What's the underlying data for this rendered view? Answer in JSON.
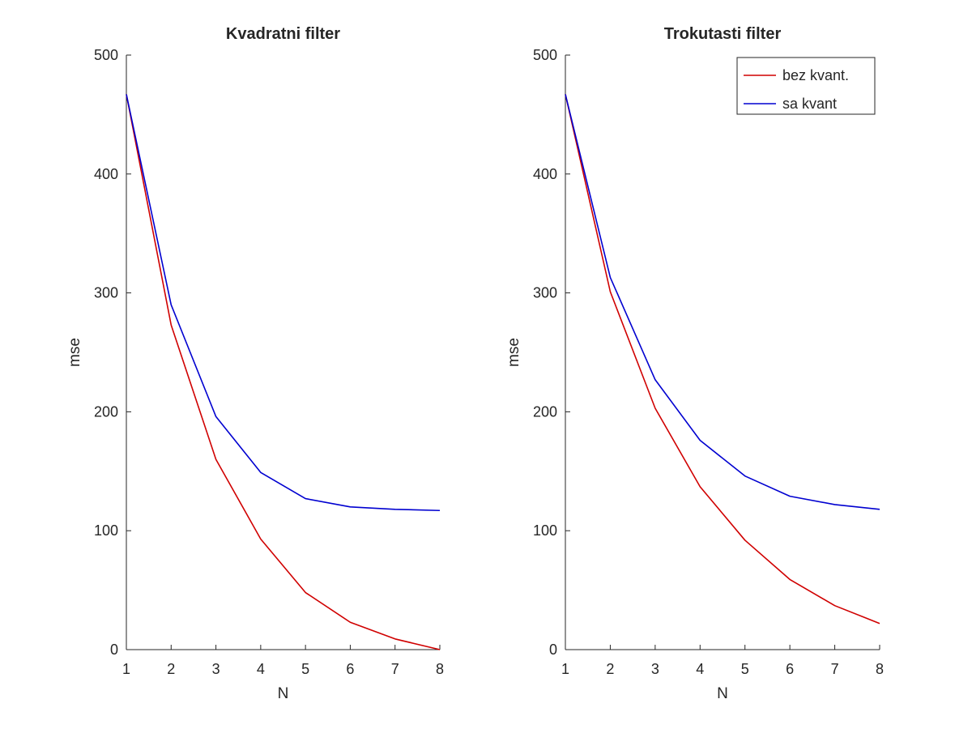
{
  "chart_data": [
    {
      "type": "line",
      "title": "Kvadratni filter",
      "xlabel": "N",
      "ylabel": "mse",
      "xlim": [
        1,
        8
      ],
      "ylim": [
        0,
        500
      ],
      "xticks": [
        1,
        2,
        3,
        4,
        5,
        6,
        7,
        8
      ],
      "yticks": [
        0,
        100,
        200,
        300,
        400,
        500
      ],
      "x": [
        1,
        2,
        3,
        4,
        5,
        6,
        7,
        8
      ],
      "legend": null,
      "series": [
        {
          "name": "bez kvant.",
          "color": "#d00000",
          "values": [
            467,
            273,
            160,
            93,
            48,
            23,
            9,
            0
          ]
        },
        {
          "name": "sa kvant",
          "color": "#0000d0",
          "values": [
            467,
            290,
            196,
            149,
            127,
            120,
            118,
            117
          ]
        }
      ]
    },
    {
      "type": "line",
      "title": "Trokutasti filter",
      "xlabel": "N",
      "ylabel": "mse",
      "xlim": [
        1,
        8
      ],
      "ylim": [
        0,
        500
      ],
      "xticks": [
        1,
        2,
        3,
        4,
        5,
        6,
        7,
        8
      ],
      "yticks": [
        0,
        100,
        200,
        300,
        400,
        500
      ],
      "x": [
        1,
        2,
        3,
        4,
        5,
        6,
        7,
        8
      ],
      "legend": "top-right",
      "series": [
        {
          "name": "bez kvant.",
          "color": "#d00000",
          "values": [
            467,
            301,
            203,
            137,
            92,
            59,
            37,
            22
          ]
        },
        {
          "name": "sa kvant",
          "color": "#0000d0",
          "values": [
            467,
            313,
            227,
            176,
            146,
            129,
            122,
            118
          ]
        }
      ]
    }
  ]
}
